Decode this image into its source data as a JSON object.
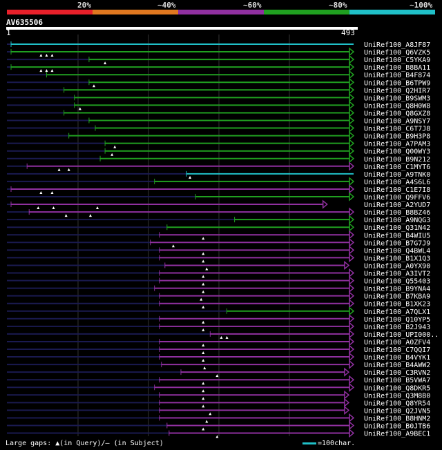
{
  "scale": {
    "labels": [
      "20%",
      "~40%",
      "~60%",
      "~80%",
      "~100%"
    ],
    "colors": [
      "#e8202a",
      "#e07820",
      "#9030a0",
      "#20a020",
      "#20c0c8"
    ]
  },
  "query": {
    "id": "AV635506",
    "start_label": "1",
    "end_label": "493"
  },
  "chart_data": {
    "type": "alignment",
    "query_length": 493,
    "identity_colors": {
      "80": "#20a020",
      "60": "#9030a0",
      "100": "#20c0c8"
    },
    "hits": [
      {
        "name": "UniRef100_A8JF87",
        "start": 1,
        "end": 493,
        "color": "100",
        "arrow": false,
        "gaps": [],
        "dark_end": 1
      },
      {
        "name": "UniRef100_Q6VZK5",
        "start": 1,
        "end": 493,
        "color": "80",
        "arrow": true,
        "gaps": [
          44,
          52,
          60
        ],
        "dark_end": 1
      },
      {
        "name": "UniRef100_C5YKA9",
        "start": 113,
        "end": 493,
        "color": "80",
        "arrow": true,
        "gaps": [
          136
        ],
        "dark_end": 113
      },
      {
        "name": "UniRef100_B8BA11",
        "start": 1,
        "end": 493,
        "color": "80",
        "arrow": true,
        "gaps": [
          44,
          52,
          60
        ],
        "dark_end": 1
      },
      {
        "name": "UniRef100_B4F874",
        "start": 52,
        "end": 493,
        "color": "80",
        "arrow": true,
        "gaps": [],
        "dark_end": 52
      },
      {
        "name": "UniRef100_B6TPW9",
        "start": 113,
        "end": 493,
        "color": "80",
        "arrow": true,
        "gaps": [
          120
        ],
        "dark_end": 113
      },
      {
        "name": "UniRef100_Q2HIR7",
        "start": 77,
        "end": 493,
        "color": "80",
        "arrow": true,
        "gaps": [],
        "dark_end": 77
      },
      {
        "name": "UniRef100_B9SWM3",
        "start": 92,
        "end": 493,
        "color": "80",
        "arrow": true,
        "gaps": [],
        "dark_end": 92
      },
      {
        "name": "UniRef100_Q8H0W8",
        "start": 92,
        "end": 493,
        "color": "80",
        "arrow": true,
        "gaps": [
          100
        ],
        "dark_end": 92
      },
      {
        "name": "UniRef100_Q8GXZ8",
        "start": 77,
        "end": 493,
        "color": "80",
        "arrow": true,
        "gaps": [],
        "dark_end": 77
      },
      {
        "name": "UniRef100_A9NSY7",
        "start": 113,
        "end": 493,
        "color": "80",
        "arrow": true,
        "gaps": [],
        "dark_end": 113
      },
      {
        "name": "UniRef100_C6T7J8",
        "start": 122,
        "end": 493,
        "color": "80",
        "arrow": true,
        "gaps": [],
        "dark_end": 122
      },
      {
        "name": "UniRef100_B9H3P8",
        "start": 84,
        "end": 493,
        "color": "80",
        "arrow": true,
        "gaps": [],
        "dark_end": 84
      },
      {
        "name": "UniRef100_A7PAM3",
        "start": 136,
        "end": 493,
        "color": "80",
        "arrow": true,
        "gaps": [
          150
        ],
        "dark_end": 136
      },
      {
        "name": "UniRef100_Q00WY3",
        "start": 136,
        "end": 493,
        "color": "80",
        "arrow": true,
        "gaps": [
          146
        ],
        "dark_end": 136
      },
      {
        "name": "UniRef100_B9N212",
        "start": 129,
        "end": 493,
        "color": "80",
        "arrow": true,
        "gaps": [],
        "dark_end": 129
      },
      {
        "name": "UniRef100_C1MYT6",
        "start": 24,
        "end": 493,
        "color": "60",
        "arrow": true,
        "gaps": [
          70,
          84
        ],
        "dark_end": 24
      },
      {
        "name": "UniRef100_A9TNK0",
        "start": 253,
        "end": 493,
        "color": "100",
        "arrow": false,
        "gaps": [
          258
        ],
        "dark_end": 253
      },
      {
        "name": "UniRef100_A4S6L6",
        "start": 207,
        "end": 493,
        "color": "80",
        "arrow": true,
        "gaps": [],
        "dark_end": 207
      },
      {
        "name": "UniRef100_C1E7I8",
        "start": 1,
        "end": 493,
        "color": "60",
        "arrow": true,
        "gaps": [
          44,
          60
        ],
        "dark_end": 1
      },
      {
        "name": "UniRef100_Q9FFV6",
        "start": 266,
        "end": 493,
        "color": "80",
        "arrow": true,
        "gaps": [],
        "dark_end": 266
      },
      {
        "name": "UniRef100_A2YUD7",
        "start": 1,
        "end": 455,
        "color": "60",
        "arrow": true,
        "gaps": [
          40,
          62,
          125
        ],
        "dark_end": 1
      },
      {
        "name": "UniRef100_B8BZ46",
        "start": 27,
        "end": 493,
        "color": "60",
        "arrow": true,
        "gaps": [
          80,
          115
        ],
        "dark_end": 27
      },
      {
        "name": "UniRef100_A9NQG3",
        "start": 322,
        "end": 493,
        "color": "80",
        "arrow": true,
        "gaps": [],
        "dark_end": 322
      },
      {
        "name": "UniRef100_Q31N42",
        "start": 225,
        "end": 493,
        "color": "80",
        "arrow": true,
        "gaps": [],
        "dark_end": 225
      },
      {
        "name": "UniRef100_B4WIU5",
        "start": 214,
        "end": 493,
        "color": "60",
        "arrow": true,
        "gaps": [
          277
        ],
        "dark_end": 214
      },
      {
        "name": "UniRef100_B7G7J9",
        "start": 201,
        "end": 493,
        "color": "60",
        "arrow": true,
        "gaps": [
          234
        ],
        "dark_end": 201
      },
      {
        "name": "UniRef100_Q4BWL4",
        "start": 214,
        "end": 493,
        "color": "60",
        "arrow": true,
        "gaps": [
          277
        ],
        "dark_end": 214
      },
      {
        "name": "UniRef100_B1X1Q3",
        "start": 214,
        "end": 493,
        "color": "60",
        "arrow": true,
        "gaps": [
          277
        ],
        "dark_end": 214
      },
      {
        "name": "UniRef100_A0YX90",
        "start": 222,
        "end": 486,
        "color": "60",
        "arrow": true,
        "gaps": [
          282
        ],
        "dark_end": 222
      },
      {
        "name": "UniRef100_A3IVT2",
        "start": 214,
        "end": 493,
        "color": "60",
        "arrow": true,
        "gaps": [
          277
        ],
        "dark_end": 214
      },
      {
        "name": "UniRef100_Q55403",
        "start": 214,
        "end": 493,
        "color": "60",
        "arrow": true,
        "gaps": [
          277
        ],
        "dark_end": 214
      },
      {
        "name": "UniRef100_B9YNA4",
        "start": 207,
        "end": 493,
        "color": "60",
        "arrow": true,
        "gaps": [
          277
        ],
        "dark_end": 207
      },
      {
        "name": "UniRef100_B7KBA9",
        "start": 214,
        "end": 493,
        "color": "60",
        "arrow": true,
        "gaps": [
          274
        ],
        "dark_end": 214
      },
      {
        "name": "UniRef100_B1XK23",
        "start": 214,
        "end": 493,
        "color": "60",
        "arrow": true,
        "gaps": [
          277
        ],
        "dark_end": 214
      },
      {
        "name": "UniRef100_A7QLX1",
        "start": 311,
        "end": 493,
        "color": "80",
        "arrow": true,
        "gaps": [],
        "dark_end": 311
      },
      {
        "name": "UniRef100_Q10YP5",
        "start": 214,
        "end": 493,
        "color": "60",
        "arrow": true,
        "gaps": [
          277
        ],
        "dark_end": 214
      },
      {
        "name": "UniRef100_B2J943",
        "start": 214,
        "end": 493,
        "color": "60",
        "arrow": true,
        "gaps": [
          277
        ],
        "dark_end": 214
      },
      {
        "name": "UniRef100_UPI000..",
        "start": 287,
        "end": 493,
        "color": "60",
        "arrow": true,
        "gaps": [
          303,
          311
        ],
        "dark_end": 287
      },
      {
        "name": "UniRef100_A0ZFV4",
        "start": 214,
        "end": 493,
        "color": "60",
        "arrow": true,
        "gaps": [
          277
        ],
        "dark_end": 214
      },
      {
        "name": "UniRef100_C7QQI7",
        "start": 214,
        "end": 493,
        "color": "60",
        "arrow": true,
        "gaps": [
          277
        ],
        "dark_end": 214
      },
      {
        "name": "UniRef100_B4VYK1",
        "start": 214,
        "end": 493,
        "color": "60",
        "arrow": true,
        "gaps": [
          277
        ],
        "dark_end": 214
      },
      {
        "name": "UniRef100_B4AWW2",
        "start": 217,
        "end": 493,
        "color": "60",
        "arrow": true,
        "gaps": [
          279
        ],
        "dark_end": 217
      },
      {
        "name": "UniRef100_C3RVN2",
        "start": 245,
        "end": 486,
        "color": "60",
        "arrow": true,
        "gaps": [
          297
        ],
        "dark_end": 245
      },
      {
        "name": "UniRef100_B5VWA7",
        "start": 214,
        "end": 493,
        "color": "60",
        "arrow": true,
        "gaps": [
          277
        ],
        "dark_end": 214
      },
      {
        "name": "UniRef100_Q8DKR5",
        "start": 207,
        "end": 493,
        "color": "60",
        "arrow": true,
        "gaps": [
          277
        ],
        "dark_end": 207
      },
      {
        "name": "UniRef100_Q3M8B0",
        "start": 214,
        "end": 486,
        "color": "60",
        "arrow": true,
        "gaps": [
          277
        ],
        "dark_end": 214
      },
      {
        "name": "UniRef100_Q8YR54",
        "start": 214,
        "end": 486,
        "color": "60",
        "arrow": true,
        "gaps": [
          277
        ],
        "dark_end": 214
      },
      {
        "name": "UniRef100_Q2JVN5",
        "start": 214,
        "end": 486,
        "color": "60",
        "arrow": true,
        "gaps": [
          287
        ],
        "dark_end": 214
      },
      {
        "name": "UniRef100_B8HNM2",
        "start": 214,
        "end": 493,
        "color": "60",
        "arrow": true,
        "gaps": [
          282
        ],
        "dark_end": 214
      },
      {
        "name": "UniRef100_B0JTB6",
        "start": 225,
        "end": 493,
        "color": "60",
        "arrow": true,
        "gaps": [
          277
        ],
        "dark_end": 225
      },
      {
        "name": "UniRef100_A9BEC1",
        "start": 228,
        "end": 493,
        "color": "60",
        "arrow": true,
        "gaps": [
          297
        ],
        "dark_end": 228
      }
    ]
  },
  "legend": {
    "text": "Large gaps: ▲(in Query)/– (in Subject)",
    "scale_text": "=100char."
  }
}
